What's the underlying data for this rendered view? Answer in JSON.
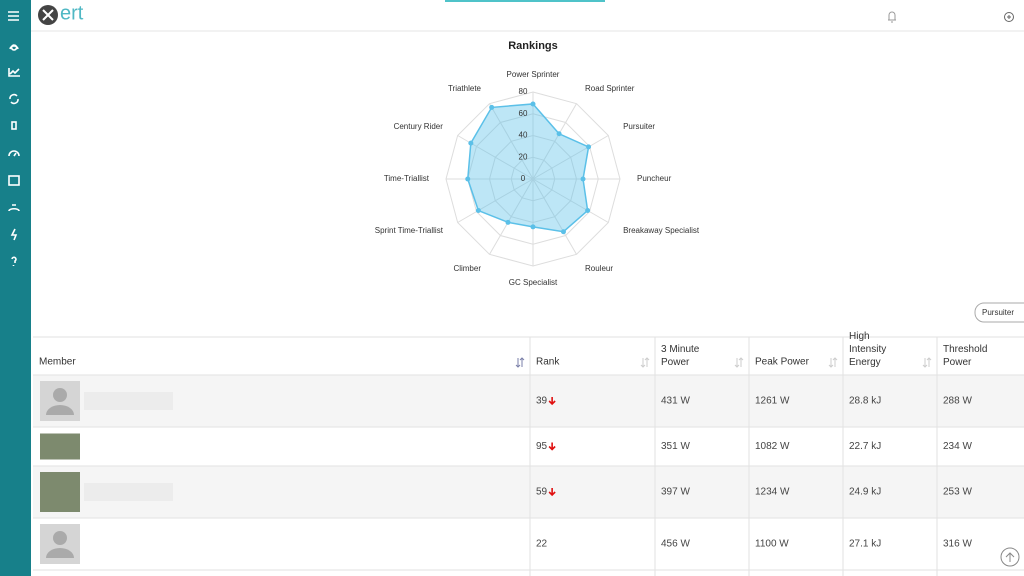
{
  "header": {
    "logo": "ert"
  },
  "chart_data": {
    "type": "radar",
    "title": "Rankings",
    "categories": [
      "Power Sprinter",
      "Road Sprinter",
      "Pursuiter",
      "Puncheur",
      "Breakaway Specialist",
      "Rouleur",
      "GC Specialist",
      "Climber",
      "Sprint Time-Triallist",
      "Time-Triallist",
      "Century Rider",
      "Triathlete"
    ],
    "values": [
      69,
      48,
      59,
      46,
      58,
      56,
      44,
      46,
      58,
      60,
      66,
      76
    ],
    "color": "#5bc0e8",
    "ylim": [
      0,
      80
    ],
    "yticks": [
      0,
      20,
      40,
      60,
      80
    ],
    "grid": true
  },
  "selector": {
    "label": "Pursuiter"
  },
  "table": {
    "columns": [
      "Member",
      "Rank",
      "3 Minute Power",
      "Peak Power",
      "High Intensity Energy",
      "Threshold Power"
    ],
    "rows": [
      {
        "rank": 39,
        "trend": "down",
        "cells": [
          "431 W",
          "1261 W",
          "28.8 kJ",
          "288 W"
        ]
      },
      {
        "rank": 95,
        "trend": "down",
        "cells": [
          "351 W",
          "1082 W",
          "22.7 kJ",
          "234 W"
        ]
      },
      {
        "rank": 59,
        "trend": "down",
        "cells": [
          "397 W",
          "1234 W",
          "24.9 kJ",
          "253 W"
        ]
      },
      {
        "rank": 22,
        "cells": [
          "456 W",
          "1100 W",
          "27.1 kJ",
          "316 W"
        ]
      }
    ]
  }
}
